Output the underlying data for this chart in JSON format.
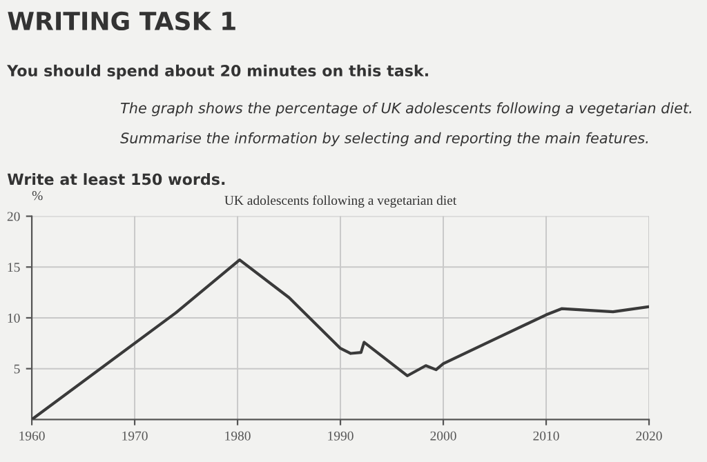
{
  "chart_data": {
    "type": "line",
    "title": "UK adolescents following a vegetarian diet",
    "ylabel": "%",
    "annotations": [
      "WRITING TASK 1",
      "You should spend about 20 minutes on this task.",
      "The graph shows the percentage of UK adolescents following a vegetarian diet.",
      "Summarise the information by selecting and reporting the main features.",
      "Write at least 150 words."
    ],
    "series": [
      {
        "color": "#3a3a3a",
        "x": [
          1960,
          1974,
          1980.2,
          1985,
          1990,
          1991,
          1992,
          1992.3,
          1996.5,
          1998.3,
          1999.3,
          2000,
          2005,
          2010,
          2011.5,
          2016.5,
          2020
        ],
        "values": [
          0,
          10.5,
          15.7,
          12,
          7,
          6.5,
          6.6,
          7.6,
          4.3,
          5.3,
          4.9,
          5.5,
          7.9,
          10.3,
          10.9,
          10.6,
          11.1
        ]
      }
    ],
    "xlim": [
      1960,
      2020
    ],
    "xticks": [
      1960,
      1970,
      1980,
      1990,
      2000,
      2010,
      2020
    ],
    "ylim": [
      0,
      20
    ],
    "yticks": [
      5,
      10,
      15,
      20
    ],
    "grid": true,
    "marker": "none",
    "line_style": "solid"
  }
}
